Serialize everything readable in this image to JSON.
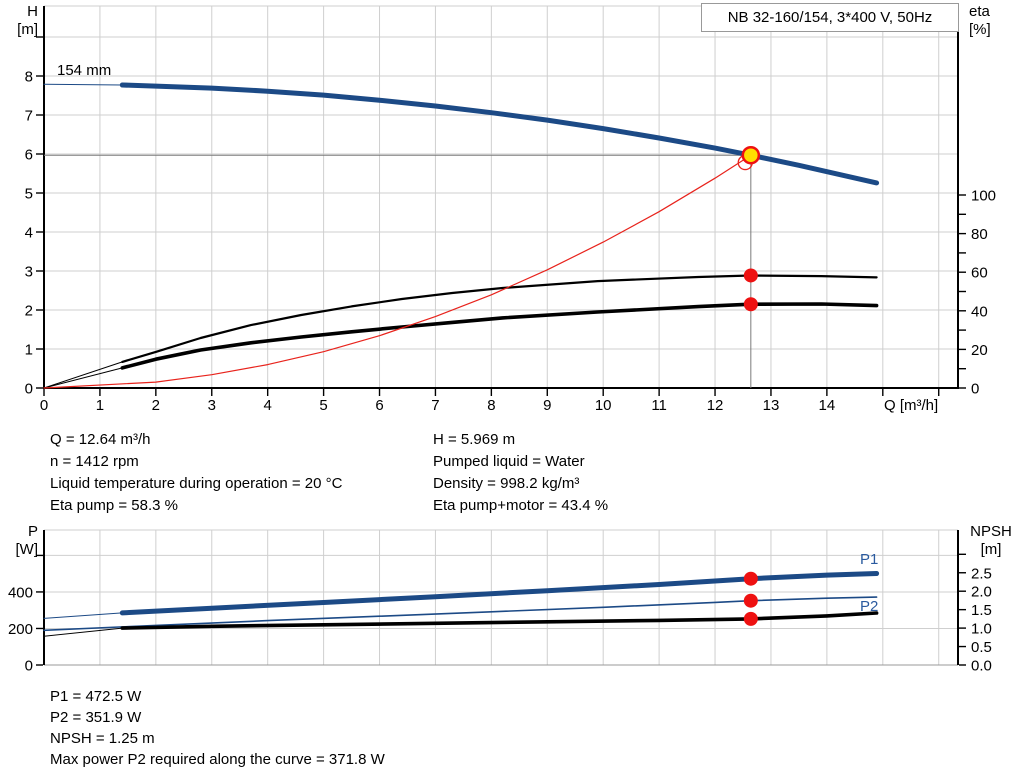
{
  "title_box": {
    "label": "NB 32-160/154, 3*400 V, 50Hz"
  },
  "axis_labels": {
    "h": "H",
    "h_unit": "[m]",
    "eta": "eta",
    "eta_unit": "[%]",
    "p": "P",
    "p_unit": "[W]",
    "npsh": "NPSH",
    "npsh_unit": "[m]",
    "q": "Q [m³/h]"
  },
  "curve_labels": {
    "impeller": "154 mm",
    "p1": "P1",
    "p2": "P2"
  },
  "duty_text_left": [
    "Q = 12.64 m³/h",
    "n = 1412 rpm",
    "Liquid temperature during operation = 20 °C",
    "Eta pump = 58.3 %"
  ],
  "duty_text_right": [
    "H = 5.969 m",
    "Pumped liquid = Water",
    "Density = 998.2 kg/m³",
    "Eta pump+motor = 43.4 %"
  ],
  "result_text": [
    "P1 = 472.5 W",
    "P2 = 351.9 W",
    "NPSH = 1.25 m",
    "Max power P2 required along the curve = 371.8 W"
  ],
  "colors": {
    "curve_blue": "#1c4a86",
    "curve_black": "#000000",
    "curve_red": "#e8231c",
    "marker_red": "#ee1111",
    "duty_yellow": "#ffdf00",
    "grid": "#cfcfcf",
    "crosshair": "#7a7a7a",
    "label_blue": "#2a5a9f",
    "border_gray": "#999999"
  },
  "chart_data": [
    {
      "type": "line",
      "title": "NB 32-160/154, 3*400 V, 50Hz",
      "xlabel": "Q [m³/h]",
      "ylabel_left": "H [m]",
      "ylabel_right": "eta [%]",
      "xlim": [
        0,
        16.35
      ],
      "ylim_left": [
        0,
        9.8
      ],
      "ylim_right_shown": [
        0,
        100
      ],
      "grid": true,
      "legend": "none",
      "x_ticks": [
        0,
        1,
        2,
        3,
        4,
        5,
        6,
        7,
        8,
        9,
        10,
        11,
        12,
        13,
        14
      ],
      "h_ticks": [
        0,
        1,
        2,
        3,
        4,
        5,
        6,
        7,
        8
      ],
      "eta_ticks": [
        0,
        20,
        40,
        60,
        80,
        100
      ],
      "series": [
        {
          "id": "head",
          "name": "Head 154 mm",
          "axis": "H",
          "color": "#1c4a86",
          "width": 5,
          "thin_until": 1.4,
          "points": [
            [
              0,
              7.79
            ],
            [
              1.4,
              7.77
            ],
            [
              2,
              7.74
            ],
            [
              3,
              7.69
            ],
            [
              4,
              7.61
            ],
            [
              5,
              7.51
            ],
            [
              6,
              7.38
            ],
            [
              7,
              7.23
            ],
            [
              8,
              7.06
            ],
            [
              9,
              6.87
            ],
            [
              10,
              6.65
            ],
            [
              11,
              6.41
            ],
            [
              12,
              6.15
            ],
            [
              12.64,
              5.969
            ],
            [
              13.5,
              5.71
            ],
            [
              14.89,
              5.26
            ]
          ]
        },
        {
          "id": "eta-pump",
          "name": "Eta pump",
          "axis": "eta",
          "color": "#000000",
          "width": 2.2,
          "thin_until": 1.4,
          "points": [
            [
              0,
              0
            ],
            [
              1.4,
              13.5
            ],
            [
              2,
              18.7
            ],
            [
              2.8,
              25.9
            ],
            [
              3.7,
              32.6
            ],
            [
              4.6,
              37.8
            ],
            [
              5.5,
              42.3
            ],
            [
              6.4,
              46.1
            ],
            [
              7.3,
              49.2
            ],
            [
              8.2,
              51.8
            ],
            [
              9.9,
              55.4
            ],
            [
              11.7,
              57.5
            ],
            [
              12.64,
              58.3
            ],
            [
              13.9,
              58.0
            ],
            [
              14.89,
              57.3
            ]
          ]
        },
        {
          "id": "eta-pump-motor",
          "name": "Eta pump+motor",
          "axis": "eta",
          "color": "#000000",
          "width": 3.6,
          "thin_until": 1.4,
          "points": [
            [
              0,
              0
            ],
            [
              1.4,
              10.4
            ],
            [
              2,
              14.9
            ],
            [
              2.8,
              19.7
            ],
            [
              3.7,
              23.4
            ],
            [
              4.6,
              26.4
            ],
            [
              5.5,
              29.1
            ],
            [
              6.4,
              31.6
            ],
            [
              7.3,
              34.0
            ],
            [
              8.2,
              36.3
            ],
            [
              9.9,
              39.4
            ],
            [
              11.7,
              42.2
            ],
            [
              12.64,
              43.4
            ],
            [
              13.9,
              43.5
            ],
            [
              14.89,
              42.7
            ]
          ]
        },
        {
          "id": "system",
          "name": "System curve",
          "axis": "H",
          "color": "#e8231c",
          "width": 1.2,
          "points": [
            [
              0,
              0
            ],
            [
              2,
              0.15
            ],
            [
              3,
              0.34
            ],
            [
              4,
              0.6
            ],
            [
              5,
              0.93
            ],
            [
              6,
              1.34
            ],
            [
              7,
              1.83
            ],
            [
              8,
              2.39
            ],
            [
              9,
              3.03
            ],
            [
              10,
              3.74
            ],
            [
              11,
              4.52
            ],
            [
              12,
              5.38
            ],
            [
              12.64,
              5.969
            ]
          ]
        }
      ],
      "markers": [
        {
          "type": "open",
          "axis": "H",
          "q": 12.54,
          "v": 5.78
        },
        {
          "type": "dot",
          "axis": "eta",
          "q": 12.64,
          "v": 58.3
        },
        {
          "type": "dot",
          "axis": "eta",
          "q": 12.64,
          "v": 43.4
        },
        {
          "type": "duty",
          "axis": "H",
          "q": 12.64,
          "v": 5.969
        }
      ],
      "crosshair": {
        "q": 12.64,
        "h": 5.969
      }
    },
    {
      "type": "line",
      "title": "",
      "xlabel": "",
      "ylabel_left": "P [W]",
      "ylabel_right": "NPSH [m]",
      "xlim": [
        0,
        16.35
      ],
      "ylim_left": [
        0,
        740
      ],
      "ylim_right": [
        0,
        3.65
      ],
      "grid": true,
      "legend": "inline P1/P2",
      "p_ticks": [
        0,
        200,
        400
      ],
      "npsh_ticks": [
        "0.0",
        "0.5",
        "1.0",
        "1.5",
        "2.0",
        "2.5"
      ],
      "series": [
        {
          "id": "p1",
          "name": "P1",
          "axis": "P",
          "color": "#1c4a86",
          "width": 5,
          "thin_until": 1.4,
          "points": [
            [
              0,
              255
            ],
            [
              1.4,
              285
            ],
            [
              3,
              311
            ],
            [
              5,
              342
            ],
            [
              7,
              374
            ],
            [
              9,
              407
            ],
            [
              11,
              441
            ],
            [
              12.64,
              472.5
            ],
            [
              14,
              492
            ],
            [
              14.89,
              501
            ]
          ]
        },
        {
          "id": "p2",
          "name": "P2",
          "axis": "P",
          "color": "#1c4a86",
          "width": 1.6,
          "points": [
            [
              0,
              190
            ],
            [
              2,
              217
            ],
            [
              4,
              243
            ],
            [
              6,
              267
            ],
            [
              8,
              291
            ],
            [
              10,
              316
            ],
            [
              12,
              343
            ],
            [
              12.64,
              351.9
            ],
            [
              14,
              366
            ],
            [
              14.89,
              371.8
            ]
          ]
        },
        {
          "id": "npsh",
          "name": "NPSH",
          "axis": "NPSH",
          "color": "#000000",
          "width": 3.6,
          "thin_until": 1.4,
          "points": [
            [
              0,
              0.78
            ],
            [
              1.4,
              1.0
            ],
            [
              3,
              1.05
            ],
            [
              5,
              1.09
            ],
            [
              7,
              1.13
            ],
            [
              9,
              1.17
            ],
            [
              11,
              1.21
            ],
            [
              12.64,
              1.25
            ],
            [
              14,
              1.33
            ],
            [
              14.89,
              1.41
            ]
          ]
        }
      ],
      "markers": [
        {
          "type": "dot",
          "axis": "P",
          "q": 12.64,
          "v": 472.5
        },
        {
          "type": "dot",
          "axis": "P",
          "q": 12.64,
          "v": 351.9
        },
        {
          "type": "dot",
          "axis": "NPSH",
          "q": 12.64,
          "v": 1.25
        }
      ]
    }
  ]
}
